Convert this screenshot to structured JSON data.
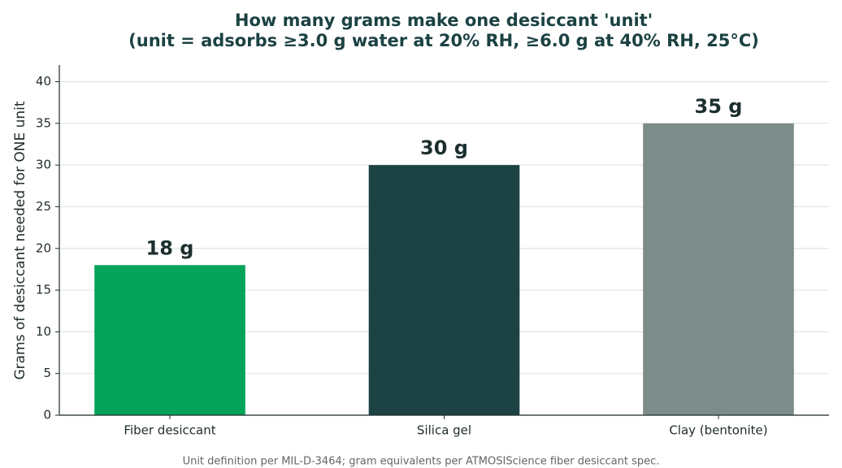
{
  "chart_data": {
    "type": "bar",
    "title": "How many grams make one desiccant 'unit'",
    "subtitle": "(unit = adsorbs ≥3.0 g water at 20% RH, ≥6.0 g at 40% RH, 25°C)",
    "ylabel": "Grams of desiccant needed for ONE unit",
    "caption": "Unit definition per MIL-D-3464; gram equivalents per ATMOSIScience fiber desiccant spec.",
    "categories": [
      "Fiber desiccant",
      "Silica gel",
      "Clay (bentonite)"
    ],
    "values": [
      18,
      30,
      35
    ],
    "value_labels": [
      "18 g",
      "30 g",
      "35 g"
    ],
    "colors": [
      "#03a35a",
      "#1c4243",
      "#7c8c88"
    ],
    "ylim": [
      0,
      42
    ],
    "yticks": [
      0,
      5,
      10,
      15,
      20,
      25,
      30,
      35,
      40
    ],
    "grid": true
  }
}
